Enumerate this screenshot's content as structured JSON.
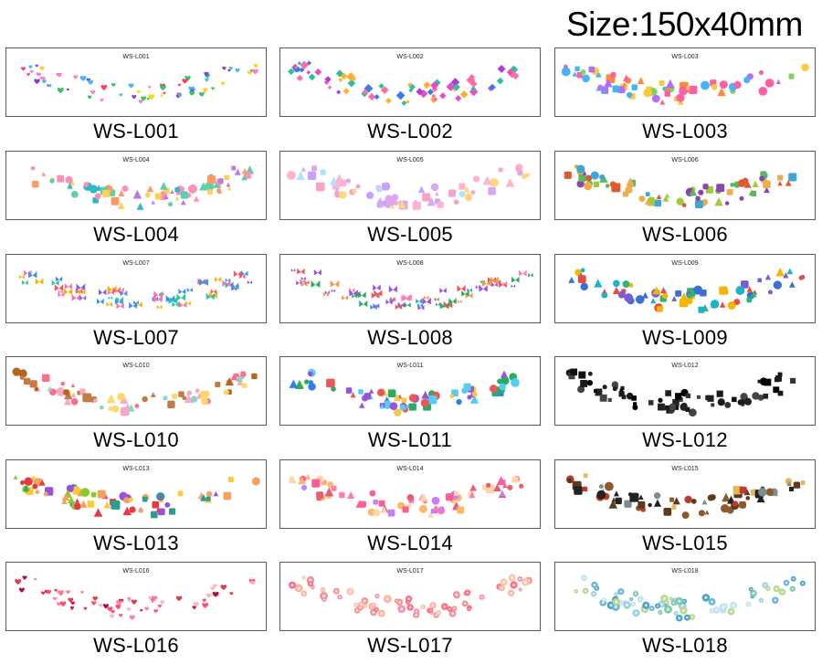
{
  "header": {
    "size_label": "Size:150x40mm"
  },
  "sheets": [
    {
      "code": "WS-L001",
      "label": "WS-L001",
      "theme": "hearts-icon",
      "palette": [
        "#ff3b5c",
        "#ffd21f",
        "#7b3fe4",
        "#3fb8ff",
        "#ff7ac8",
        "#36c46b"
      ]
    },
    {
      "code": "WS-L002",
      "label": "WS-L002",
      "theme": "gem-icon",
      "palette": [
        "#b03ad6",
        "#e84ac9",
        "#ff6aa8",
        "#3a7be8",
        "#ffb02e",
        "#2bbf9f"
      ]
    },
    {
      "code": "WS-L003",
      "label": "WS-L003",
      "theme": "party-icon",
      "palette": [
        "#ff5fa2",
        "#ffc93d",
        "#42b6f5",
        "#7fd35b",
        "#b86bff",
        "#ff8a3d"
      ]
    },
    {
      "code": "WS-L004",
      "label": "WS-L004",
      "theme": "mermaid-icon",
      "palette": [
        "#2fb8c9",
        "#ff8fb6",
        "#b77be8",
        "#ffcf5a",
        "#5ad1a8",
        "#ff9966"
      ]
    },
    {
      "code": "WS-L005",
      "label": "WS-L005",
      "theme": "unicorn-icon",
      "palette": [
        "#d9a8f0",
        "#ffb3d1",
        "#c9a0ff",
        "#ffd77a",
        "#aee3ff",
        "#f5a3c7"
      ]
    },
    {
      "code": "WS-L006",
      "label": "WS-L006",
      "theme": "dinosaur-icon",
      "palette": [
        "#e4572e",
        "#5cb85c",
        "#f0ad4e",
        "#3fa7d6",
        "#8e44ad",
        "#a1c935"
      ]
    },
    {
      "code": "WS-L007",
      "label": "WS-L007",
      "theme": "butterfly-icon",
      "palette": [
        "#3f8ef5",
        "#ff6fb0",
        "#ffb000",
        "#7b61ff",
        "#2cc6a4",
        "#ff5757"
      ]
    },
    {
      "code": "WS-L008",
      "label": "WS-L008",
      "theme": "butterfly-icon",
      "palette": [
        "#2d9cdb",
        "#ff7eb3",
        "#f2994a",
        "#27ae60",
        "#9b51e0",
        "#eb5757"
      ]
    },
    {
      "code": "WS-L009",
      "label": "WS-L009",
      "theme": "robot-icon",
      "palette": [
        "#3b6fd6",
        "#2bb673",
        "#f7b500",
        "#e94b3c",
        "#7a5cd6",
        "#1ab3c9"
      ]
    },
    {
      "code": "WS-L010",
      "label": "WS-L010",
      "theme": "dessert-icon",
      "palette": [
        "#f7a8c4",
        "#c47a44",
        "#ffd66b",
        "#ff6b8a",
        "#8fd3c7",
        "#b5651d"
      ]
    },
    {
      "code": "WS-L011",
      "label": "WS-L011",
      "theme": "space-icon",
      "palette": [
        "#2f80ed",
        "#27ae60",
        "#f2c94c",
        "#eb5757",
        "#9b51e0",
        "#56ccf2"
      ]
    },
    {
      "code": "WS-L012",
      "label": "WS-L012",
      "theme": "viking-icon",
      "palette": [
        "#111111",
        "#333333",
        "#222222",
        "#000000",
        "#444444",
        "#1a1a1a"
      ]
    },
    {
      "code": "WS-L013",
      "label": "WS-L013",
      "theme": "fruit-icon",
      "palette": [
        "#e63946",
        "#2a9d8f",
        "#f4a261",
        "#8ac926",
        "#9d4edd",
        "#ffca3a"
      ]
    },
    {
      "code": "WS-L014",
      "label": "WS-L014",
      "theme": "fairy-icon",
      "palette": [
        "#ff7bac",
        "#ffb86b",
        "#c77dff",
        "#ff5d8f",
        "#ffd6a5",
        "#e85d75"
      ]
    },
    {
      "code": "WS-L015",
      "label": "WS-L015",
      "theme": "pirate-icon",
      "palette": [
        "#5b3a1e",
        "#222222",
        "#c0392b",
        "#e6b85c",
        "#7f8c8d",
        "#8e5a2b"
      ]
    },
    {
      "code": "WS-L016",
      "label": "WS-L016",
      "theme": "love-icon",
      "palette": [
        "#e63946",
        "#ff7aa2",
        "#c9184a",
        "#ff4d6d",
        "#a4133c",
        "#ffb3c6"
      ]
    },
    {
      "code": "WS-L017",
      "label": "WS-L017",
      "theme": "flower-icon",
      "palette": [
        "#ff8fab",
        "#f4978e",
        "#e5989b",
        "#ffb4a2",
        "#ff6b81",
        "#fbc4ab"
      ]
    },
    {
      "code": "WS-L018",
      "label": "WS-L018",
      "theme": "boho-icon",
      "palette": [
        "#4aa3c7",
        "#7fc8a9",
        "#9ad0e6",
        "#b9d98a",
        "#6cb4d6",
        "#c3e3ee"
      ]
    }
  ]
}
